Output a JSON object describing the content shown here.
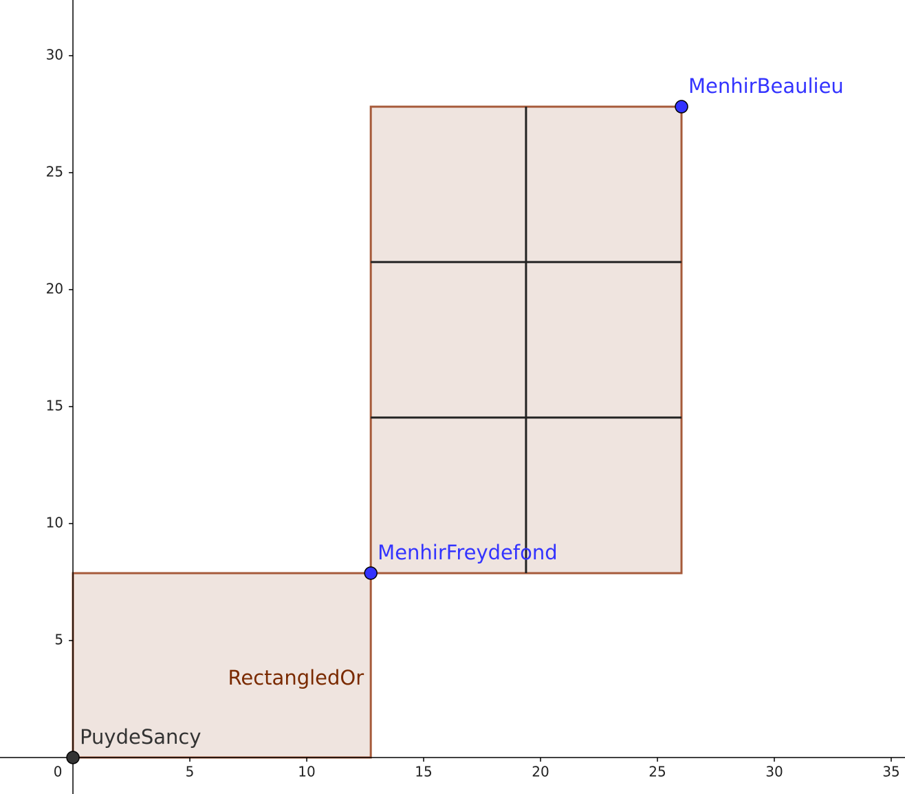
{
  "chart_data": {
    "type": "geometry",
    "xlim": [
      -3.12,
      35.59
    ],
    "ylim": [
      -1.56,
      32.38
    ],
    "xticks": [
      0,
      5,
      10,
      15,
      20,
      25,
      30,
      35
    ],
    "yticks": [
      5,
      10,
      15,
      20,
      25,
      30
    ],
    "rectangles": [
      {
        "name": "RectangledOr",
        "x": [
          0,
          12.74
        ],
        "y": [
          0,
          7.88
        ],
        "fill": "#efe4df",
        "color": "#a65a3a",
        "label_color": "#7a2a00"
      },
      {
        "x": [
          12.74,
          26.03
        ],
        "y": [
          7.88,
          27.82
        ],
        "fill": "#efe4df",
        "color": "#a65a3a"
      }
    ],
    "segments": [
      {
        "x": [
          19.38,
          19.38
        ],
        "y": [
          7.88,
          27.82
        ],
        "color": "#222222"
      },
      {
        "x": [
          12.74,
          26.03
        ],
        "y": [
          21.18,
          21.18
        ],
        "color": "#222222"
      },
      {
        "x": [
          12.74,
          26.03
        ],
        "y": [
          14.53,
          14.53
        ],
        "color": "#222222"
      }
    ],
    "points": [
      {
        "name": "PuydeSancy",
        "x": 0,
        "y": 0,
        "color": "#333333"
      },
      {
        "name": "MenhirFreydefond",
        "x": 12.74,
        "y": 7.88,
        "color": "#3333ff"
      },
      {
        "name": "MenhirBeaulieu",
        "x": 26.03,
        "y": 27.82,
        "color": "#3333ff"
      }
    ]
  }
}
